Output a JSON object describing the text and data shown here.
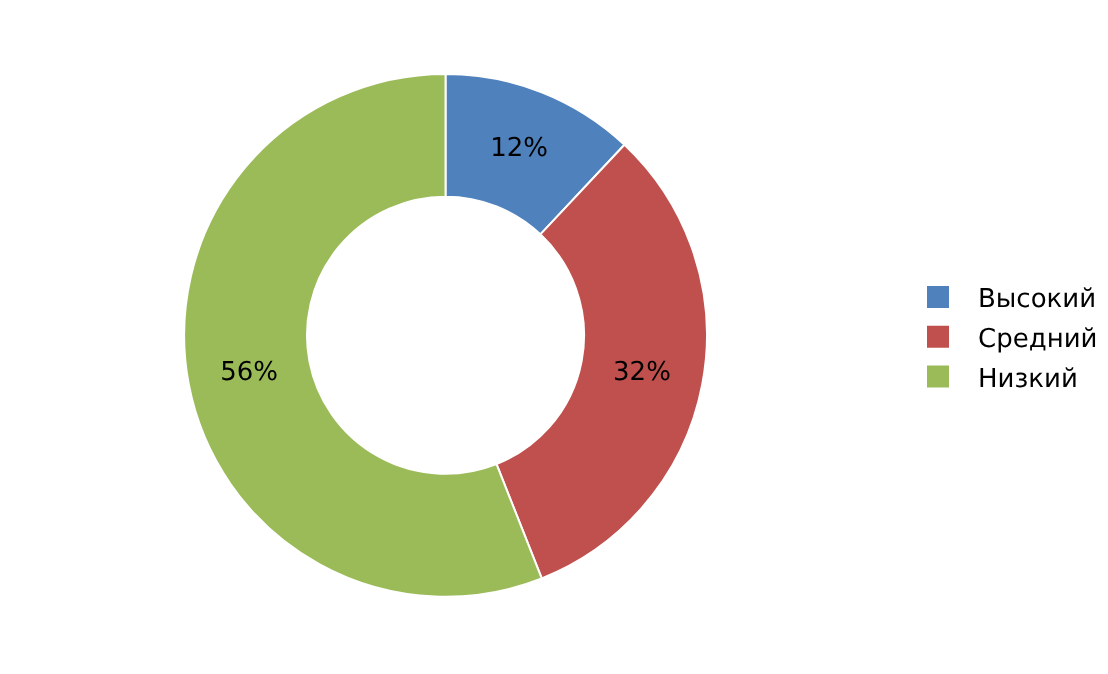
{
  "chart_data": {
    "type": "donut",
    "categories": [
      "Высокий",
      "Средний",
      "Низкий"
    ],
    "values": [
      12,
      32,
      56
    ],
    "value_labels": [
      "12%",
      "32%",
      "56%"
    ],
    "colors": [
      "#4f81bd",
      "#c0504d",
      "#9bbb59"
    ],
    "legend": "right"
  }
}
